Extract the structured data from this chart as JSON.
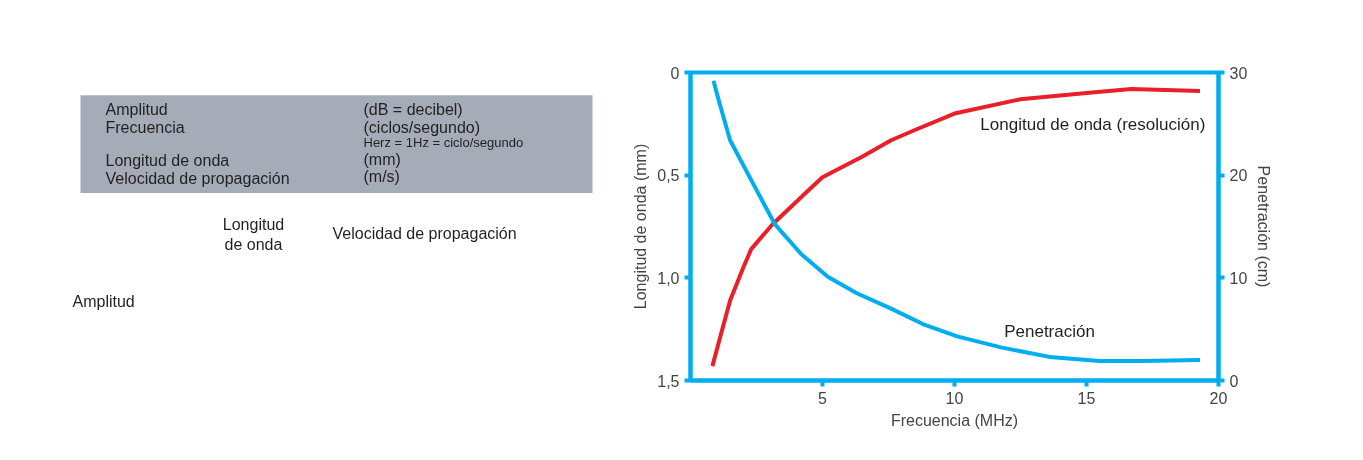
{
  "chart_data": {
    "type": "line",
    "xlabel": "Frecuencia (MHz)",
    "ylabel": "Longitud de onda (mm)",
    "y2label": "Penetración (cm)",
    "xlim": [
      0,
      20
    ],
    "xticks": [
      5,
      10,
      15,
      20
    ],
    "ylim": [
      1.5,
      0
    ],
    "yticks": [
      {
        "value": 0,
        "label": "0"
      },
      {
        "value": 0.5,
        "label": "0,5"
      },
      {
        "value": 1.0,
        "label": "1,0"
      },
      {
        "value": 1.5,
        "label": "1,5"
      }
    ],
    "y2lim": [
      0,
      30
    ],
    "y2ticks": [
      0,
      10,
      20,
      30
    ],
    "grid": false,
    "line_style": "solid",
    "marker": "none",
    "series": [
      {
        "name": "Longitud de onda (resolución)",
        "color": "#e8202a",
        "x": [
          0.83,
          1.1,
          1.5,
          2.0,
          2.3,
          3.1,
          4.5,
          5,
          6.5,
          7.6,
          8.5,
          10,
          12.5,
          15,
          16.7,
          19.3
        ],
        "values": [
          1.43,
          1.3,
          1.11,
          0.95,
          0.86,
          0.74,
          0.57,
          0.51,
          0.41,
          0.33,
          0.28,
          0.2,
          0.13,
          0.1,
          0.08,
          0.09
        ]
      },
      {
        "name": "Penetración",
        "color": "#00aeef",
        "axis": "y2",
        "x": [
          0.87,
          1.1,
          1.5,
          2.2,
          3.2,
          4.2,
          5.2,
          6.3,
          7.6,
          8.8,
          10.1,
          11.8,
          13.6,
          15.5,
          17.1,
          19.3
        ],
        "values": [
          29.2,
          27,
          23.4,
          20,
          15.2,
          12.3,
          10.1,
          8.5,
          7.0,
          5.5,
          4.3,
          3.2,
          2.3,
          1.9,
          1.9,
          2.0
        ]
      }
    ],
    "annotations": [
      "Amplitud",
      "(dB = decibel)",
      "Frecuencia",
      "(ciclos/segundo)",
      "Herz = 1Hz = ciclo/segundo",
      "Longitud de onda",
      "(mm)",
      "Velocidad de propagación",
      "(m/s)",
      "Longitud\nde onda",
      "Velocidad de propagación",
      "Amplitud"
    ]
  }
}
